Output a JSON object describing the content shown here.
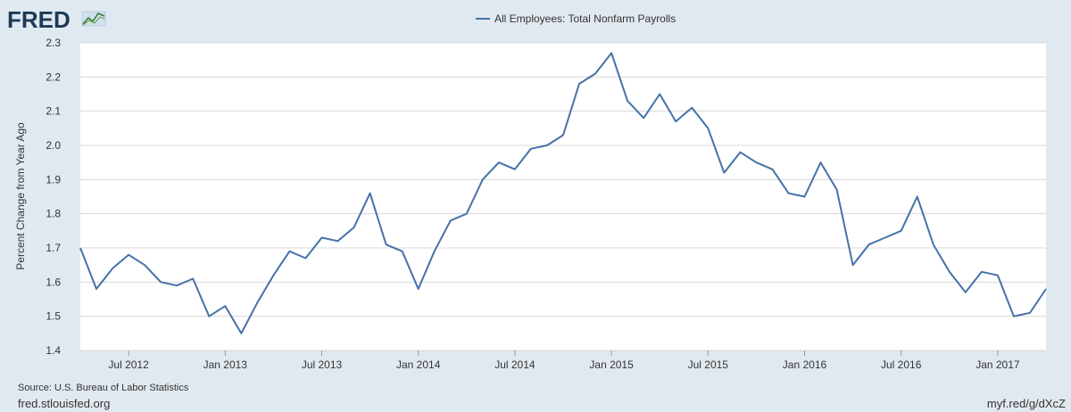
{
  "brand": {
    "name": "FRED",
    "site": "fred.stlouisfed.org",
    "short_link": "myf.red/g/dXcZ"
  },
  "source": "Source: U.S. Bureau of Labor Statistics",
  "colors": {
    "background": "#e1e9f0",
    "plot_background": "#ffffff",
    "line": "#4572a7",
    "grid": "#d8d8d8",
    "logo": "#1b3a57"
  },
  "chart_data": {
    "type": "line",
    "title": "",
    "legend_position": "top-center",
    "ylabel": "Percent Change from Year Ago",
    "xlabel": "",
    "ylim": [
      1.4,
      2.3
    ],
    "xlim": [
      "2012-04",
      "2017-04"
    ],
    "y_ticks": [
      1.4,
      1.5,
      1.6,
      1.7,
      1.8,
      1.9,
      2.0,
      2.1,
      2.2,
      2.3
    ],
    "y_tick_labels": [
      "1.4",
      "1.5",
      "1.6",
      "1.7",
      "1.8",
      "1.9",
      "2.0",
      "2.1",
      "2.2",
      "2.3"
    ],
    "x_ticks": [
      "2012-07",
      "2013-01",
      "2013-07",
      "2014-01",
      "2014-07",
      "2015-01",
      "2015-07",
      "2016-01",
      "2016-07",
      "2017-01"
    ],
    "x_tick_labels": [
      "Jul 2012",
      "Jan 2013",
      "Jul 2013",
      "Jan 2014",
      "Jul 2014",
      "Jan 2015",
      "Jul 2015",
      "Jan 2016",
      "Jul 2016",
      "Jan 2017"
    ],
    "grid": true,
    "series": [
      {
        "name": "All Employees: Total Nonfarm Payrolls",
        "x": [
          "2012-04",
          "2012-05",
          "2012-06",
          "2012-07",
          "2012-08",
          "2012-09",
          "2012-10",
          "2012-11",
          "2012-12",
          "2013-01",
          "2013-02",
          "2013-03",
          "2013-04",
          "2013-05",
          "2013-06",
          "2013-07",
          "2013-08",
          "2013-09",
          "2013-10",
          "2013-11",
          "2013-12",
          "2014-01",
          "2014-02",
          "2014-03",
          "2014-04",
          "2014-05",
          "2014-06",
          "2014-07",
          "2014-08",
          "2014-09",
          "2014-10",
          "2014-11",
          "2014-12",
          "2015-01",
          "2015-02",
          "2015-03",
          "2015-04",
          "2015-05",
          "2015-06",
          "2015-07",
          "2015-08",
          "2015-09",
          "2015-10",
          "2015-11",
          "2015-12",
          "2016-01",
          "2016-02",
          "2016-03",
          "2016-04",
          "2016-05",
          "2016-06",
          "2016-07",
          "2016-08",
          "2016-09",
          "2016-10",
          "2016-11",
          "2016-12",
          "2017-01",
          "2017-02",
          "2017-03",
          "2017-04"
        ],
        "values": [
          1.7,
          1.58,
          1.64,
          1.68,
          1.65,
          1.6,
          1.59,
          1.61,
          1.5,
          1.53,
          1.45,
          1.54,
          1.62,
          1.69,
          1.67,
          1.73,
          1.72,
          1.76,
          1.86,
          1.71,
          1.69,
          1.58,
          1.69,
          1.78,
          1.8,
          1.9,
          1.95,
          1.93,
          1.99,
          2.0,
          2.03,
          2.18,
          2.21,
          2.27,
          2.13,
          2.08,
          2.15,
          2.07,
          2.11,
          2.05,
          1.92,
          1.98,
          1.95,
          1.93,
          1.86,
          1.85,
          1.95,
          1.87,
          1.65,
          1.71,
          1.73,
          1.75,
          1.85,
          1.71,
          1.63,
          1.57,
          1.63,
          1.62,
          1.5,
          1.51,
          1.58
        ]
      }
    ]
  }
}
